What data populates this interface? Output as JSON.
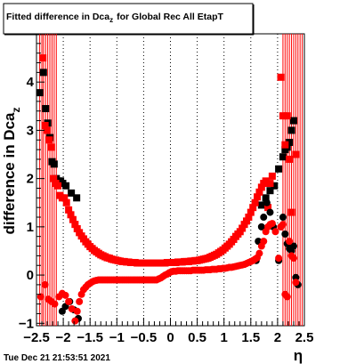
{
  "title": {
    "prefix": "Fitted difference in Dca",
    "sub": "z",
    "suffix": "for Global Rec All EtapT"
  },
  "timestamp": "Tue Dec 21 21:53:51 2021",
  "colors": {
    "series_black": "#000000",
    "series_red": "#ff0000",
    "frame": "#000000",
    "gridline": "#000000",
    "background": "#ffffff"
  },
  "chart_data": {
    "type": "scatter",
    "title": "Fitted difference in Dcaz for Global Rec All EtapT",
    "xlabel": "η",
    "ylabel": "difference in Dca",
    "ylabel_sub": "z",
    "xlim": [
      -2.5,
      2.5
    ],
    "ylim": [
      -1.05,
      5.0
    ],
    "xticks": [
      -2.5,
      -2,
      -1.5,
      -1,
      -0.5,
      0,
      0.5,
      1,
      1.5,
      2,
      2.5
    ],
    "xtick_labels": [
      "−2.5",
      "−2",
      "−1.5",
      "−1",
      "−0.5",
      "0",
      "0.5",
      "1",
      "1.5",
      "2",
      "2.5"
    ],
    "yticks": [
      -1,
      0,
      1,
      2,
      3,
      4
    ],
    "ytick_labels": [
      "−1",
      "0",
      "1",
      "2",
      "3",
      "4"
    ],
    "grid": {
      "x": true,
      "y": false,
      "style": "dotted"
    },
    "series": [
      {
        "marker": "square",
        "color": "#000000",
        "x": [
          -2.44,
          -2.37,
          -2.33,
          -2.29,
          -2.25,
          -2.21,
          -2.17,
          -2.13,
          -2.09,
          -2.05,
          -2.01,
          -1.95,
          -1.85,
          -1.75,
          1.7,
          1.78,
          1.86,
          1.94,
          2.02,
          2.1,
          2.14,
          2.18,
          2.22,
          2.26,
          2.3
        ],
        "y": [
          3.78,
          4.2,
          3.45,
          3.15,
          2.85,
          2.35,
          2.3,
          2.0,
          1.95,
          1.95,
          1.9,
          1.85,
          1.7,
          1.6,
          1.45,
          1.6,
          1.75,
          1.85,
          2.2,
          2.45,
          2.6,
          2.65,
          2.75,
          3.0,
          3.2
        ]
      },
      {
        "marker": "square",
        "color": "#ff0000",
        "x": [
          -2.38,
          -2.34,
          -2.3,
          -2.26,
          -2.22,
          -2.18,
          -2.14,
          -2.1,
          -2.06,
          -2.02,
          -1.98,
          -1.94,
          -1.9,
          -1.86,
          -1.82,
          -1.78,
          -1.74,
          -1.7,
          -1.66,
          -1.62,
          -1.58,
          -1.54,
          -1.5,
          -1.46,
          -1.42,
          -1.38,
          -1.34,
          -1.3,
          -1.26,
          -1.22,
          -1.18,
          -1.14,
          -1.1,
          -1.06,
          -1.02,
          -0.98,
          -0.94,
          -0.9,
          -0.86,
          -0.82,
          -0.78,
          -0.74,
          -0.7,
          -0.66,
          -0.62,
          -0.58,
          -0.54,
          -0.5,
          -0.46,
          -0.42,
          -0.38,
          -0.34,
          -0.3,
          -0.26,
          -0.22,
          -0.18,
          -0.14,
          -0.1,
          -0.06,
          -0.02,
          0.02,
          0.06,
          0.1,
          0.14,
          0.18,
          0.22,
          0.26,
          0.3,
          0.34,
          0.38,
          0.42,
          0.46,
          0.5,
          0.54,
          0.58,
          0.62,
          0.66,
          0.7,
          0.74,
          0.78,
          0.82,
          0.86,
          0.9,
          0.94,
          0.98,
          1.02,
          1.06,
          1.1,
          1.14,
          1.18,
          1.22,
          1.26,
          1.3,
          1.34,
          1.38,
          1.42,
          1.46,
          1.5,
          1.54,
          1.58,
          1.62,
          1.66,
          1.7,
          1.74,
          1.78,
          1.82,
          1.86,
          1.9,
          2.06,
          2.1,
          2.14,
          2.18,
          2.22,
          2.26,
          2.34
        ],
        "y": [
          4.5,
          3.1,
          3.0,
          2.8,
          2.65,
          2.0,
          1.9,
          1.85,
          1.65,
          1.6,
          1.6,
          1.5,
          1.35,
          1.25,
          1.15,
          1.05,
          0.96,
          0.88,
          0.81,
          0.75,
          0.69,
          0.64,
          0.59,
          0.55,
          0.51,
          0.48,
          0.45,
          0.42,
          0.4,
          0.38,
          0.36,
          0.35,
          0.33,
          0.32,
          0.31,
          0.3,
          0.29,
          0.28,
          0.28,
          0.27,
          0.27,
          0.26,
          0.26,
          0.26,
          0.25,
          0.25,
          0.25,
          0.25,
          0.25,
          0.25,
          0.25,
          0.25,
          0.25,
          0.25,
          0.25,
          0.25,
          0.25,
          0.25,
          0.26,
          0.26,
          0.26,
          0.26,
          0.26,
          0.27,
          0.27,
          0.27,
          0.28,
          0.28,
          0.28,
          0.29,
          0.29,
          0.3,
          0.3,
          0.31,
          0.32,
          0.33,
          0.34,
          0.35,
          0.37,
          0.39,
          0.41,
          0.43,
          0.46,
          0.49,
          0.52,
          0.56,
          0.6,
          0.64,
          0.69,
          0.74,
          0.8,
          0.85,
          0.9,
          0.97,
          1.05,
          1.12,
          1.2,
          1.3,
          1.4,
          1.5,
          1.62,
          1.72,
          1.82,
          1.9,
          1.95,
          1.4,
          1.9,
          2.05,
          4.1,
          3.3,
          2.7,
          3.3,
          2.4,
          1.3,
          2.5
        ]
      },
      {
        "marker": "circle",
        "color": "#000000",
        "x": [
          -2.02,
          -1.96,
          -1.88,
          -1.8,
          -1.72,
          1.6,
          1.64,
          1.7,
          1.74,
          1.8,
          1.86,
          1.92,
          2.02,
          2.06,
          2.1,
          2.14,
          2.18,
          2.22,
          2.26,
          2.3,
          2.34,
          2.38
        ],
        "y": [
          -0.75,
          -0.65,
          -0.55,
          -0.72,
          -0.9,
          0.3,
          0.7,
          1.0,
          1.2,
          1.5,
          1.3,
          1.0,
          0.3,
          1.0,
          1.2,
          0.85,
          0.65,
          0.55,
          0.5,
          0.6,
          -0.05,
          -0.2
        ]
      },
      {
        "marker": "circle",
        "color": "#ff0000",
        "x": [
          -2.42,
          -2.34,
          -2.28,
          -2.22,
          -2.16,
          -2.08,
          -2.02,
          -1.96,
          -1.9,
          -1.84,
          -1.78,
          -1.74,
          -1.7,
          -1.66,
          -1.62,
          -1.58,
          -1.54,
          -1.5,
          -1.46,
          -1.42,
          -1.38,
          -1.34,
          -1.3,
          -1.26,
          -1.22,
          -1.18,
          -1.14,
          -1.1,
          -1.06,
          -1.02,
          -0.98,
          -0.94,
          -0.9,
          -0.86,
          -0.82,
          -0.78,
          -0.74,
          -0.7,
          -0.66,
          -0.62,
          -0.58,
          -0.54,
          -0.5,
          -0.46,
          -0.42,
          -0.38,
          -0.34,
          -0.3,
          -0.26,
          -0.22,
          -0.18,
          -0.14,
          -0.1,
          -0.06,
          -0.02,
          0.02,
          0.06,
          0.1,
          0.14,
          0.18,
          0.22,
          0.26,
          0.3,
          0.34,
          0.38,
          0.42,
          0.46,
          0.5,
          0.54,
          0.58,
          0.62,
          0.66,
          0.7,
          0.74,
          0.78,
          0.82,
          0.86,
          0.9,
          0.94,
          0.98,
          1.02,
          1.06,
          1.1,
          1.14,
          1.18,
          1.22,
          1.26,
          1.3,
          1.34,
          1.38,
          1.42,
          1.46,
          1.5,
          1.54,
          1.58,
          1.62,
          1.66,
          1.7,
          1.74,
          1.78,
          1.82,
          1.86,
          1.9,
          1.96,
          2.02,
          2.06,
          2.1,
          2.14,
          2.18,
          2.22,
          2.26,
          2.3,
          2.34
        ],
        "y": [
          -0.45,
          -0.2,
          -0.5,
          -0.55,
          -0.6,
          -0.45,
          -0.38,
          -0.42,
          -0.55,
          -0.7,
          -0.95,
          -0.75,
          -0.55,
          -0.4,
          -0.3,
          -0.25,
          -0.2,
          -0.17,
          -0.14,
          -0.12,
          -0.11,
          -0.1,
          -0.1,
          -0.1,
          -0.1,
          -0.1,
          -0.1,
          -0.1,
          -0.1,
          -0.1,
          -0.1,
          -0.1,
          -0.1,
          -0.1,
          -0.1,
          -0.1,
          -0.1,
          -0.1,
          -0.1,
          -0.1,
          -0.1,
          -0.1,
          -0.1,
          -0.1,
          -0.1,
          -0.1,
          -0.1,
          -0.1,
          -0.1,
          -0.08,
          -0.06,
          -0.03,
          0.0,
          0.02,
          0.05,
          0.07,
          0.08,
          0.08,
          0.09,
          0.09,
          0.09,
          0.09,
          0.09,
          0.09,
          0.09,
          0.1,
          0.1,
          0.1,
          0.1,
          0.1,
          0.1,
          0.11,
          0.11,
          0.11,
          0.12,
          0.12,
          0.12,
          0.13,
          0.13,
          0.14,
          0.14,
          0.15,
          0.16,
          0.16,
          0.17,
          0.18,
          0.19,
          0.2,
          0.21,
          0.22,
          0.24,
          0.26,
          0.28,
          0.3,
          0.33,
          0.36,
          0.45,
          0.6,
          0.7,
          0.9,
          1.0,
          1.05,
          1.07,
          0.9,
          0.35,
          1.0,
          1.05,
          -0.4,
          -0.45,
          0.7,
          0.4,
          0.35,
          -0.15
        ]
      }
    ],
    "error_bars": {
      "color": "#ff0000",
      "x": [
        -2.44,
        -2.4,
        -2.37,
        -2.33,
        -2.29,
        -2.25,
        -2.21,
        -2.17,
        -2.13,
        2.1,
        2.14,
        2.18,
        2.22,
        2.26,
        2.3,
        2.34,
        2.38,
        2.42,
        2.46
      ]
    }
  }
}
